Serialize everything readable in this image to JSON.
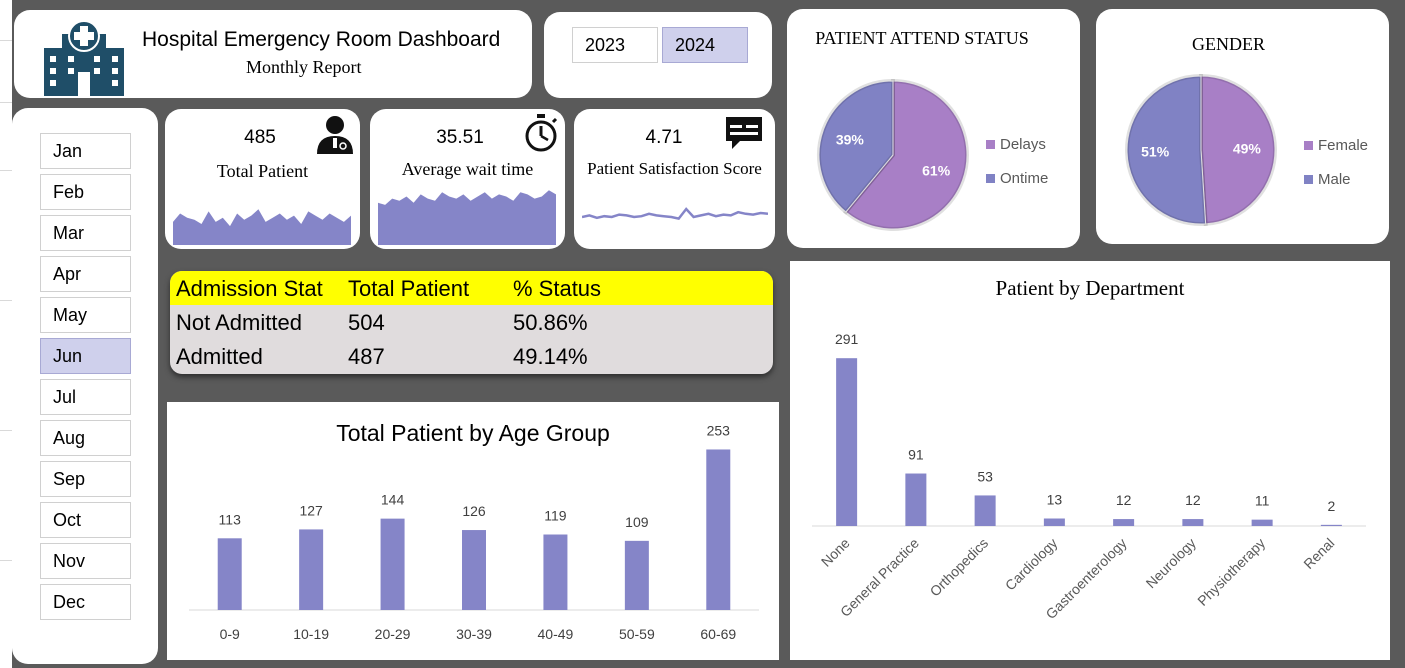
{
  "header": {
    "title": "Hospital Emergency Room Dashboard",
    "subtitle": "Monthly Report",
    "icon": "hospital-icon"
  },
  "years": {
    "options": [
      "2023",
      "2024"
    ],
    "selected": "2024"
  },
  "months": {
    "items": [
      "Jan",
      "Feb",
      "Mar",
      "Apr",
      "May",
      "Jun",
      "Jul",
      "Aug",
      "Sep",
      "Oct",
      "Nov",
      "Dec"
    ],
    "selected": "Jun"
  },
  "kpis": [
    {
      "value": "485",
      "label": "Total Patient",
      "icon": "doctor-icon"
    },
    {
      "value": "35.51",
      "label": "Average wait time",
      "icon": "stopwatch-icon"
    },
    {
      "value": "4.71",
      "label": "Patient Satisfaction Score",
      "icon": "chat-icon"
    }
  ],
  "admission": {
    "headers": [
      "Admission Stat",
      "Total Patient",
      "% Status"
    ],
    "rows": [
      [
        "Not Admitted",
        "504",
        "50.86%"
      ],
      [
        "Admitted",
        "487",
        "49.14%"
      ]
    ],
    "header_color": "#ffff00"
  },
  "colors": {
    "bar": "#8585c8",
    "pie_primary": "#a87fc6",
    "pie_secondary": "#8082c4",
    "selected_button": "#cfd0ec"
  },
  "chart_data": [
    {
      "type": "pie",
      "title": "PATIENT ATTEND STATUS",
      "slices": [
        {
          "label": "Delays",
          "value": 61,
          "display": "61%",
          "color": "#a87fc6"
        },
        {
          "label": "Ontime",
          "value": 39,
          "display": "39%",
          "color": "#8082c4"
        }
      ],
      "legend": "right"
    },
    {
      "type": "pie",
      "title": "GENDER",
      "slices": [
        {
          "label": "Female",
          "value": 49,
          "display": "49%",
          "color": "#a87fc6"
        },
        {
          "label": "Male",
          "value": 51,
          "display": "51%",
          "color": "#8082c4"
        }
      ],
      "legend": "right"
    },
    {
      "type": "bar",
      "title": "Total Patient by Age Group",
      "categories": [
        "0-9",
        "10-19",
        "20-29",
        "30-39",
        "40-49",
        "50-59",
        "60-69"
      ],
      "values": [
        113,
        127,
        144,
        126,
        119,
        109,
        253
      ],
      "ylim": [
        0,
        290
      ]
    },
    {
      "type": "bar",
      "title": "Patient by Department",
      "categories": [
        "None",
        "General Practice",
        "Orthopedics",
        "Cardiology",
        "Gastroenterology",
        "Neurology",
        "Physiotherapy",
        "Renal"
      ],
      "values": [
        291,
        91,
        53,
        13,
        12,
        12,
        11,
        2
      ],
      "ylim": [
        0,
        300
      ]
    },
    {
      "type": "area",
      "series": [
        {
          "values": [
            22,
            30,
            26,
            24,
            20,
            32,
            22,
            26,
            18,
            30,
            24,
            28,
            34,
            22,
            26,
            30,
            24,
            28,
            20,
            32,
            28,
            24,
            30,
            26,
            22,
            28
          ]
        }
      ]
    },
    {
      "type": "area",
      "series": [
        {
          "values": [
            40,
            38,
            44,
            42,
            46,
            40,
            48,
            44,
            42,
            50,
            46,
            44,
            48,
            42,
            46,
            50,
            44,
            48,
            46,
            42,
            50,
            48,
            44,
            46,
            52,
            48
          ]
        }
      ]
    },
    {
      "type": "line",
      "series": [
        {
          "values": [
            4.7,
            4.72,
            4.69,
            4.71,
            4.7,
            4.73,
            4.72,
            4.7,
            4.71,
            4.74,
            4.72,
            4.71,
            4.7,
            4.68,
            4.8,
            4.7,
            4.72,
            4.74,
            4.71,
            4.73,
            4.72,
            4.76,
            4.74,
            4.73,
            4.75,
            4.74
          ]
        }
      ]
    }
  ]
}
